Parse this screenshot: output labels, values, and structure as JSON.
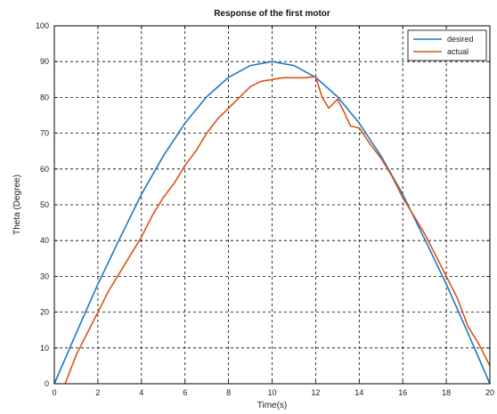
{
  "chart_data": {
    "type": "line",
    "title": "Response of the first motor",
    "xlabel": "Time(s)",
    "ylabel": "Theta (Degree)",
    "xlim": [
      0,
      20
    ],
    "ylim": [
      0,
      100
    ],
    "xticks": [
      0,
      2,
      4,
      6,
      8,
      10,
      12,
      14,
      16,
      18,
      20
    ],
    "yticks": [
      0,
      10,
      20,
      30,
      40,
      50,
      60,
      70,
      80,
      90,
      100
    ],
    "xtick_labels": [
      "0",
      "2",
      "4",
      "6",
      "8",
      "10",
      "12",
      "14",
      "16",
      "18",
      "20"
    ],
    "ytick_labels": [
      "0",
      "10",
      "20",
      "30",
      "40",
      "50",
      "60",
      "70",
      "80",
      "90",
      "100"
    ],
    "grid": true,
    "legend_position": "top-right",
    "series": [
      {
        "name": "desired",
        "color": "#1f77c4",
        "x": [
          0,
          1,
          2,
          3,
          4,
          5,
          6,
          7,
          8,
          9,
          10,
          11,
          12,
          13,
          14,
          15,
          16,
          17,
          18,
          19,
          20
        ],
        "y": [
          0,
          14.1,
          27.8,
          40.5,
          52.9,
          63.6,
          72.8,
          80.2,
          85.6,
          88.9,
          90,
          88.9,
          85.6,
          80.2,
          72.8,
          63.6,
          52.9,
          40.5,
          27.8,
          14.1,
          0
        ]
      },
      {
        "name": "actual",
        "color": "#d95319",
        "x": [
          0.5,
          1,
          1.5,
          2,
          2.5,
          3,
          3.5,
          4,
          4.5,
          5,
          5.5,
          6,
          6.5,
          7,
          7.5,
          8,
          8.5,
          9,
          9.5,
          10,
          10.5,
          11,
          11.5,
          12,
          12.3,
          12.6,
          13,
          13.3,
          13.6,
          14,
          14.5,
          15,
          15.5,
          16,
          16.5,
          17,
          17.5,
          18,
          18.5,
          19,
          19.5,
          20
        ],
        "y": [
          0,
          8,
          14,
          20,
          26,
          31,
          36,
          41,
          47,
          52,
          56,
          61,
          65,
          70,
          74,
          77,
          80,
          83,
          84.5,
          85,
          85.5,
          85.5,
          85.5,
          85.8,
          80,
          77,
          79.5,
          76,
          72,
          71.5,
          67,
          63,
          58,
          52,
          47,
          42,
          36,
          30,
          24,
          16,
          11,
          5
        ]
      }
    ]
  }
}
